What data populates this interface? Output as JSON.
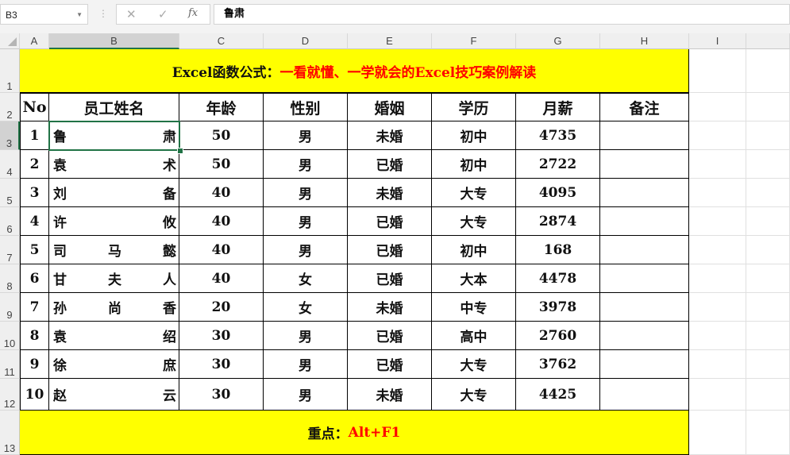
{
  "formula_bar": {
    "name_box": "B3",
    "content": "鲁肃",
    "cancel_icon": "✕",
    "enter_icon": "✓",
    "fx_label": "fx"
  },
  "columns": [
    "A",
    "B",
    "C",
    "D",
    "E",
    "F",
    "G",
    "H",
    "I"
  ],
  "rows": [
    "1",
    "2",
    "3",
    "4",
    "5",
    "6",
    "7",
    "8",
    "9",
    "10",
    "11",
    "12",
    "13"
  ],
  "title": {
    "black": "Excel函数公式：",
    "red": "一看就懂、一学就会的Excel技巧案例解读"
  },
  "headers": [
    "No",
    "员工姓名",
    "年龄",
    "性别",
    "婚姻",
    "学历",
    "月薪",
    "备注"
  ],
  "records": [
    [
      "1",
      [
        "鲁",
        "肃"
      ],
      "50",
      "男",
      "未婚",
      "初中",
      "4735",
      ""
    ],
    [
      "2",
      [
        "袁",
        "术"
      ],
      "50",
      "男",
      "已婚",
      "初中",
      "2722",
      ""
    ],
    [
      "3",
      [
        "刘",
        "备"
      ],
      "40",
      "男",
      "未婚",
      "大专",
      "4095",
      ""
    ],
    [
      "4",
      [
        "许",
        "攸"
      ],
      "40",
      "男",
      "已婚",
      "大专",
      "2874",
      ""
    ],
    [
      "5",
      [
        "司",
        "马",
        "懿"
      ],
      "40",
      "男",
      "已婚",
      "初中",
      "168",
      ""
    ],
    [
      "6",
      [
        "甘",
        "夫",
        "人"
      ],
      "40",
      "女",
      "已婚",
      "大本",
      "4478",
      ""
    ],
    [
      "7",
      [
        "孙",
        "尚",
        "香"
      ],
      "20",
      "女",
      "未婚",
      "中专",
      "3978",
      ""
    ],
    [
      "8",
      [
        "袁",
        "绍"
      ],
      "30",
      "男",
      "已婚",
      "高中",
      "2760",
      ""
    ],
    [
      "9",
      [
        "徐",
        "庶"
      ],
      "30",
      "男",
      "已婚",
      "大专",
      "3762",
      ""
    ],
    [
      "10",
      [
        "赵",
        "云"
      ],
      "30",
      "男",
      "未婚",
      "大专",
      "4425",
      ""
    ]
  ],
  "footer": {
    "black": "重点：",
    "red": "Alt+F1"
  },
  "colors": {
    "highlight": "#ffff00",
    "accent_red": "#ff0000",
    "selection": "#217346"
  }
}
